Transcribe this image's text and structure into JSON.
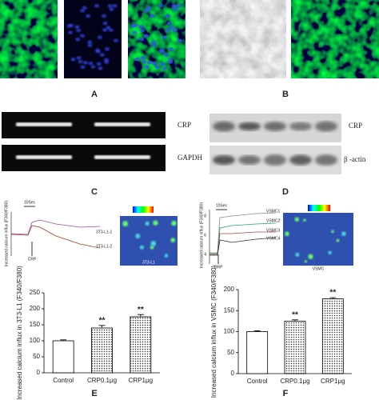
{
  "panel_labels": [
    "A",
    "B",
    "C",
    "D"
  ],
  "gels": [
    {
      "bands": [
        "CRP",
        "GAPDH"
      ]
    },
    {
      "bands": [
        "CRP",
        "β -actin"
      ]
    }
  ],
  "traces": [
    {
      "time_scale": "10Sec",
      "stimulus": "CRP",
      "ylabel": "Increased calcium influx (F340/F380)",
      "cells": [
        "3T3-L1-1",
        "3T3-L1-2"
      ],
      "image_label": "3T3-L1"
    },
    {
      "time_scale": "10Sec",
      "stimulus": "CRP",
      "ylabel": "Increased calcium influx (F340/F380)",
      "yticks": [
        "4",
        "6",
        "8"
      ],
      "cells": [
        "VSMC1",
        "VSMC2",
        "VSMC3",
        "VSMC4"
      ],
      "image_label": "VSMC"
    }
  ],
  "chart_data": [
    {
      "type": "bar",
      "label": "E",
      "ylabel": "Increased calcium influx in 3T3-L1 (F340/F380)",
      "categories": [
        "Control",
        "CRP0.1μg",
        "CRP1μg"
      ],
      "values": [
        100,
        140,
        175
      ],
      "errors": [
        3,
        8,
        7
      ],
      "significance": [
        null,
        "**",
        "**"
      ],
      "ylim": [
        0,
        250
      ],
      "yticks": [
        0,
        50,
        100,
        150,
        200,
        250
      ]
    },
    {
      "type": "bar",
      "label": "F",
      "ylabel": "Increased calcium influx in VSMC (F340/F380)",
      "categories": [
        "Control",
        "CRP0.1μg",
        "CRP1μg"
      ],
      "values": [
        100,
        125,
        178
      ],
      "errors": [
        2,
        3,
        3
      ],
      "significance": [
        null,
        "**",
        "**"
      ],
      "ylim": [
        0,
        200
      ],
      "yticks": [
        0,
        50,
        100,
        150,
        200
      ]
    }
  ]
}
